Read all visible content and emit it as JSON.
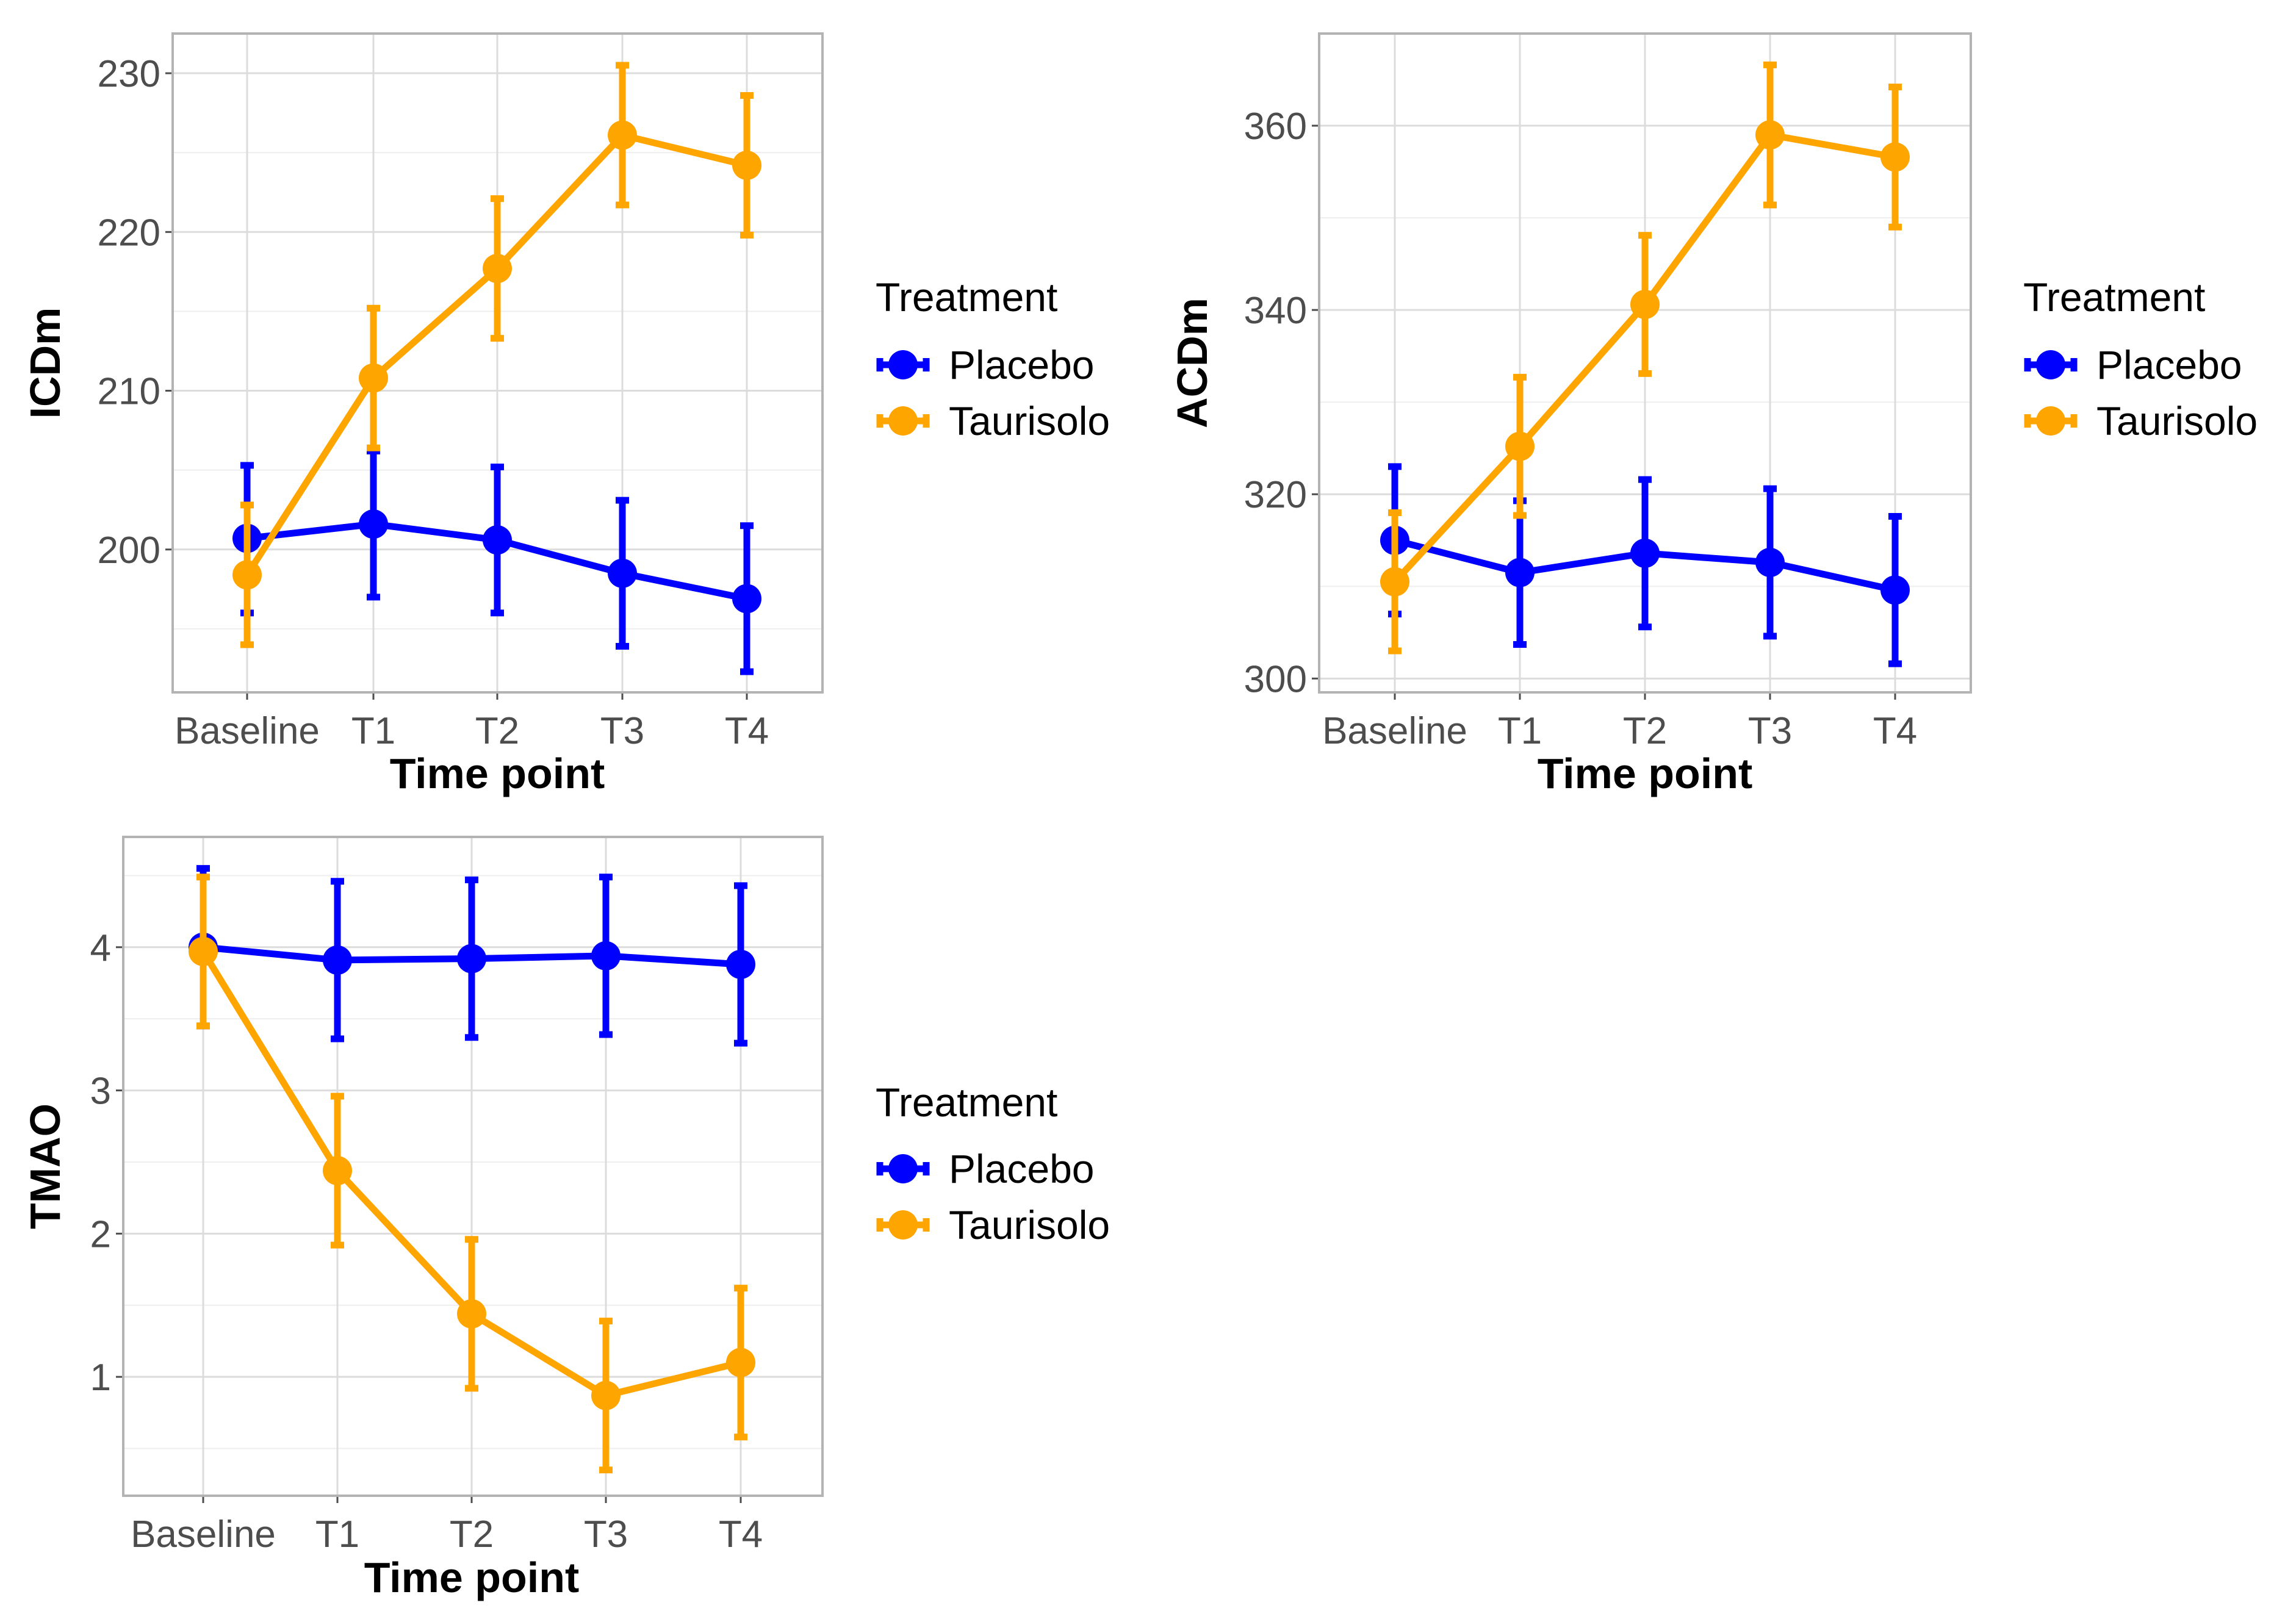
{
  "chart_data": [
    {
      "id": "icdm",
      "type": "line",
      "ylabel": "ICDm",
      "xlabel": "Time point",
      "categories": [
        "Baseline",
        "T1",
        "T2",
        "T3",
        "T4"
      ],
      "ylim": [
        191,
        232.5
      ],
      "yticks": [
        200,
        210,
        220,
        230
      ],
      "yticks_minor": [
        195,
        205,
        215,
        225
      ],
      "legend": {
        "title": "Treatment",
        "position": "right"
      },
      "series": [
        {
          "name": "Placebo",
          "color": "#0000ff",
          "values": [
            200.7,
            201.6,
            200.6,
            198.5,
            196.9
          ],
          "lower": [
            196.0,
            197.0,
            196.0,
            193.9,
            192.3
          ],
          "upper": [
            205.3,
            206.2,
            205.2,
            203.1,
            201.5
          ]
        },
        {
          "name": "Taurisolo",
          "color": "#ffa500",
          "values": [
            198.4,
            210.8,
            217.7,
            226.1,
            224.2
          ],
          "lower": [
            194.0,
            206.4,
            213.3,
            221.7,
            219.8
          ],
          "upper": [
            202.8,
            215.2,
            222.1,
            230.5,
            228.6
          ]
        }
      ]
    },
    {
      "id": "acdm",
      "type": "line",
      "ylabel": "ACDm",
      "xlabel": "Time point",
      "categories": [
        "Baseline",
        "T1",
        "T2",
        "T3",
        "T4"
      ],
      "ylim": [
        298.5,
        370
      ],
      "yticks": [
        300,
        320,
        340,
        360
      ],
      "yticks_minor": [
        310,
        330,
        350
      ],
      "legend": {
        "title": "Treatment",
        "position": "right"
      },
      "series": [
        {
          "name": "Placebo",
          "color": "#0000ff",
          "values": [
            315.0,
            311.5,
            313.6,
            312.6,
            309.6
          ],
          "lower": [
            307.0,
            303.7,
            305.6,
            304.6,
            301.6
          ],
          "upper": [
            323.0,
            319.3,
            321.6,
            320.6,
            317.6
          ]
        },
        {
          "name": "Taurisolo",
          "color": "#ffa500",
          "values": [
            310.5,
            325.2,
            340.6,
            359.0,
            356.6
          ],
          "lower": [
            303.0,
            317.7,
            333.1,
            351.4,
            349.0
          ],
          "upper": [
            318.0,
            332.7,
            348.1,
            366.6,
            364.2
          ]
        }
      ]
    },
    {
      "id": "tmao",
      "type": "line",
      "ylabel": "TMAO",
      "xlabel": "Time point",
      "categories": [
        "Baseline",
        "T1",
        "T2",
        "T3",
        "T4"
      ],
      "ylim": [
        0.17,
        4.77
      ],
      "yticks": [
        1,
        2,
        3,
        4
      ],
      "yticks_minor": [
        0.5,
        1.5,
        2.5,
        3.5,
        4.5
      ],
      "legend": {
        "title": "Treatment",
        "position": "right"
      },
      "series": [
        {
          "name": "Placebo",
          "color": "#0000ff",
          "values": [
            4.0,
            3.91,
            3.92,
            3.94,
            3.88
          ],
          "lower": [
            3.45,
            3.36,
            3.37,
            3.39,
            3.33
          ],
          "upper": [
            4.55,
            4.46,
            4.47,
            4.49,
            4.43
          ]
        },
        {
          "name": "Taurisolo",
          "color": "#ffa500",
          "values": [
            3.97,
            2.44,
            1.44,
            0.87,
            1.1
          ],
          "lower": [
            3.45,
            1.92,
            0.92,
            0.35,
            0.58
          ],
          "upper": [
            4.49,
            2.96,
            1.96,
            1.39,
            1.62
          ]
        }
      ]
    }
  ]
}
